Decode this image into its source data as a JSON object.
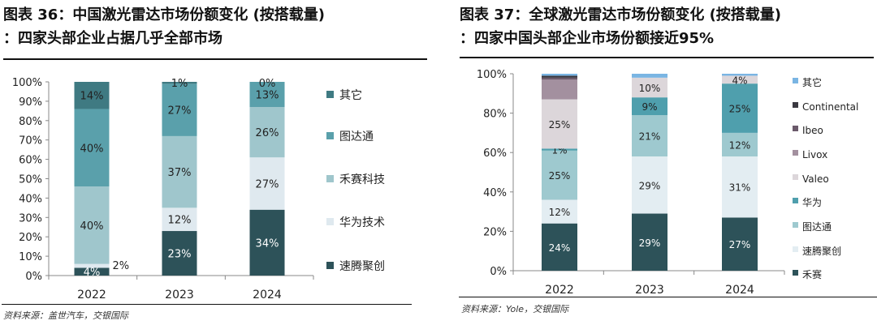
{
  "charts_meta": [
    {
      "title_line1": "图表 36：中国激光雷达市场份额变化 (按搭载量)",
      "title_line2": "：四家头部企业占据几乎全部市场",
      "source": "资料来源：盖世汽车，交银国际"
    },
    {
      "title_line1": "图表 37：全球激光雷达市场份额变化 (按搭载量)",
      "title_line2": "：四家中国头部企业市场份额接近95%",
      "source": "资料来源：Yole，交银国际"
    }
  ],
  "chart_data": [
    {
      "type": "bar",
      "stacked": true,
      "categories": [
        "2022",
        "2023",
        "2024"
      ],
      "ylim": [
        0,
        100
      ],
      "yticks": [
        "0%",
        "10%",
        "20%",
        "30%",
        "40%",
        "50%",
        "60%",
        "70%",
        "80%",
        "90%",
        "100%"
      ],
      "legend_position": "right",
      "grid": false,
      "series": [
        {
          "name": "速腾聚创",
          "values": [
            4,
            23,
            34
          ],
          "labels": [
            "4%",
            "23%",
            "34%"
          ],
          "color": "#2d5259"
        },
        {
          "name": "华为技术",
          "values": [
            2,
            12,
            27
          ],
          "labels": [
            "2%",
            "12%",
            "27%"
          ],
          "color": "#dfe9ef"
        },
        {
          "name": "禾赛科技",
          "values": [
            40,
            37,
            26
          ],
          "labels": [
            "40%",
            "37%",
            "26%"
          ],
          "color": "#9fc6cc"
        },
        {
          "name": "图达通",
          "values": [
            40,
            27,
            13
          ],
          "labels": [
            "40%",
            "27%",
            "13%"
          ],
          "color": "#5aa0ab"
        },
        {
          "name": "其它",
          "values": [
            14,
            1,
            0
          ],
          "labels": [
            "14%",
            "1%",
            "0%"
          ],
          "color": "#3f7a82"
        }
      ]
    },
    {
      "type": "bar",
      "stacked": true,
      "categories": [
        "2022",
        "2023",
        "2024"
      ],
      "ylim": [
        0,
        100
      ],
      "yticks": [
        "0%",
        "20%",
        "40%",
        "60%",
        "80%",
        "100%"
      ],
      "legend_position": "right",
      "grid": false,
      "series": [
        {
          "name": "禾赛",
          "values": [
            24,
            29,
            27
          ],
          "labels": [
            "24%",
            "29%",
            "27%"
          ],
          "color": "#2d5259"
        },
        {
          "name": "速腾聚创",
          "values": [
            12,
            29,
            31
          ],
          "labels": [
            "12%",
            "29%",
            "31%"
          ],
          "color": "#e3edf2"
        },
        {
          "name": "图达通",
          "values": [
            25,
            21,
            12
          ],
          "labels": [
            "25%",
            "21%",
            "12%"
          ],
          "color": "#9ec9cf"
        },
        {
          "name": "华为",
          "values": [
            1,
            9,
            25
          ],
          "labels": [
            "1%",
            "9%",
            "25%"
          ],
          "color": "#4f9fad"
        },
        {
          "name": "Valeo",
          "values": [
            25,
            10,
            4
          ],
          "labels": [
            "25%",
            "10%",
            "4%"
          ],
          "color": "#dcd6da"
        },
        {
          "name": "Livox",
          "values": [
            10,
            0,
            0
          ],
          "labels": [
            "",
            "",
            ""
          ],
          "color": "#a3909f"
        },
        {
          "name": "Ibeo",
          "values": [
            1,
            0,
            0
          ],
          "labels": [
            "",
            "",
            ""
          ],
          "color": "#6b5a6b"
        },
        {
          "name": "Continental",
          "values": [
            1,
            0,
            0
          ],
          "labels": [
            "",
            "",
            ""
          ],
          "color": "#3a3840"
        },
        {
          "name": "其它",
          "values": [
            1,
            2,
            1
          ],
          "labels": [
            "",
            "",
            ""
          ],
          "color": "#7ab5e3"
        }
      ]
    }
  ]
}
